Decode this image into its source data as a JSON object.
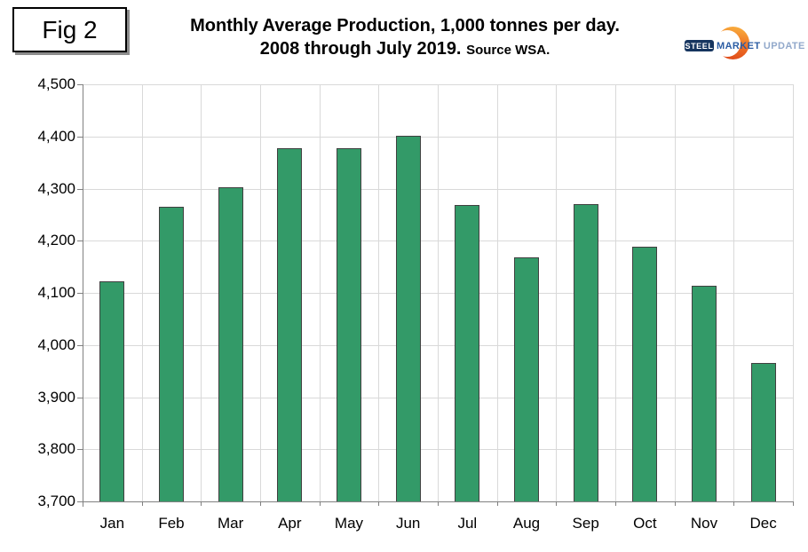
{
  "header": {
    "fig_label": "Fig 2",
    "title_line1": "Monthly Average Production, 1,000 tonnes per day.",
    "title_line2": "2008 through July 2019.",
    "title_source": "Source WSA.",
    "logo": {
      "steel": "STEEL",
      "market": "MARKET",
      "update": "UPDATE"
    }
  },
  "colors": {
    "bar_fill": "#339a68",
    "bar_border": "#404040",
    "gridline": "#d9d9d9",
    "axis": "#808080",
    "logo_navy": "#16355f",
    "logo_blue": "#2b5ca3",
    "logo_light_blue": "#92a9cb",
    "logo_orange_top": "#f9ae3e",
    "logo_orange_bottom": "#e04a1a"
  },
  "chart_data": {
    "type": "bar",
    "title": "Monthly Average Production, 1,000 tonnes per day. 2008 through July 2019.",
    "source": "Source WSA.",
    "xlabel": "",
    "ylabel": "",
    "categories": [
      "Jan",
      "Feb",
      "Mar",
      "Apr",
      "May",
      "Jun",
      "Jul",
      "Aug",
      "Sep",
      "Oct",
      "Nov",
      "Dec"
    ],
    "values": [
      4122,
      4265,
      4303,
      4378,
      4377,
      4402,
      4269,
      4168,
      4271,
      4188,
      4113,
      3966
    ],
    "ylim": [
      3700,
      4500
    ],
    "y_tick_step": 100,
    "y_tick_labels": [
      "3,700",
      "3,800",
      "3,900",
      "4,000",
      "4,100",
      "4,200",
      "4,300",
      "4,400",
      "4,500"
    ],
    "grid": true,
    "legend": null
  }
}
